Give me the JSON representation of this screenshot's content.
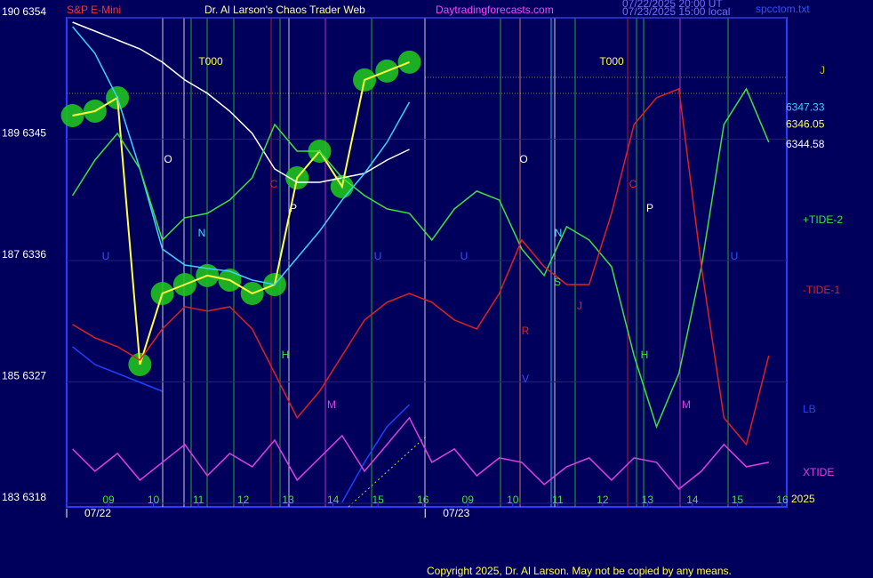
{
  "chart_data": {
    "type": "line",
    "title": "Dr. Al Larson's Chaos Trader Web",
    "instrument": "S&P E-Mini",
    "site": "Daytradingforecasts.com",
    "timestamps": [
      "07/22/2025 20:00 UT",
      "07/23/2025 15:00 local"
    ],
    "file": "spcctom.txt",
    "copyright": "Copyright 2025, Dr. Al Larson. May not be copied by any means.",
    "year": "2025",
    "x": [
      -0.8,
      -0.3,
      0.2,
      0.7,
      1.2,
      1.7,
      2.2,
      2.7,
      3.2,
      3.7,
      4.2,
      4.7,
      5.2,
      5.7,
      6.2,
      6.7,
      7.2,
      7.7,
      8.2,
      8.7,
      9.2,
      9.7,
      10.2,
      10.7,
      11.2,
      11.7,
      12.2,
      12.7,
      13.2,
      13.7,
      14.2,
      14.7
    ],
    "xlim": [
      -0.93,
      15.1
    ],
    "xticks": [
      {
        "value": 0,
        "label": "09"
      },
      {
        "value": 1,
        "label": "10"
      },
      {
        "value": 2,
        "label": "11"
      },
      {
        "value": 3,
        "label": "12"
      },
      {
        "value": 4,
        "label": "13"
      },
      {
        "value": 5,
        "label": "14"
      },
      {
        "value": 6,
        "label": "15"
      },
      {
        "value": 7,
        "label": "16"
      },
      {
        "value": 8,
        "label": "09"
      },
      {
        "value": 9,
        "label": "10"
      },
      {
        "value": 10,
        "label": "11"
      },
      {
        "value": 11,
        "label": "12"
      },
      {
        "value": 12,
        "label": "13"
      },
      {
        "value": 13,
        "label": "14"
      },
      {
        "value": 14,
        "label": "15"
      },
      {
        "value": 15,
        "label": "16"
      }
    ],
    "date_ticks": [
      {
        "value": -0.93,
        "label": "07/22"
      },
      {
        "value": 7.05,
        "label": "07/23"
      }
    ],
    "ylim": [
      6318,
      6354
    ],
    "yticks": [
      {
        "value": 6318,
        "label": "183 6318"
      },
      {
        "value": 6327,
        "label": "185 6327"
      },
      {
        "value": 6336,
        "label": "187 6336"
      },
      {
        "value": 6345,
        "label": "189 6345"
      },
      {
        "value": 6354,
        "label": "190 6354"
      }
    ],
    "grid": true,
    "series": [
      {
        "color": "#ffff40",
        "markers": true,
        "values": [
          6346.75,
          6347.08,
          6348.07,
          6328.29,
          6333.56,
          6334.22,
          6334.89,
          6334.55,
          6333.56,
          6334.22,
          6342.13,
          6344.11,
          6341.48,
          6349.39,
          6350.05,
          6350.71,
          null,
          null,
          null,
          null,
          null,
          null,
          null,
          null,
          null,
          null,
          null,
          null,
          null,
          null,
          null,
          null
        ]
      },
      {
        "color": "#ffffff",
        "values": [
          6353.67,
          6353.01,
          6352.35,
          6351.69,
          6350.71,
          6349.39,
          6348.4,
          6347.08,
          6345.43,
          6342.79,
          6341.8,
          6341.8,
          6342.13,
          6342.46,
          6343.45,
          6344.24,
          null,
          null,
          null,
          null,
          null,
          null,
          null,
          null,
          null,
          null,
          null,
          null,
          null,
          null,
          null,
          null
        ]
      },
      {
        "color": "#40d0ff",
        "values": [
          6353.34,
          6351.36,
          6348.07,
          6342.79,
          6336.86,
          6335.67,
          6335.41,
          6335.21,
          6334.55,
          6334.22,
          6336.2,
          6338.18,
          6340.49,
          6342.46,
          6344.77,
          6347.74,
          null,
          null,
          null,
          null,
          null,
          null,
          null,
          null,
          null,
          null,
          null,
          null,
          null,
          null,
          null,
          null
        ]
      },
      {
        "name": "+TIDE-2",
        "color": "#40e040",
        "values": [
          6340.82,
          6343.45,
          6345.43,
          6342.79,
          6337.52,
          6339.17,
          6339.5,
          6340.49,
          6342.13,
          6346.09,
          6344.11,
          6344.11,
          6342.13,
          6340.82,
          6339.83,
          6339.5,
          6337.52,
          6339.83,
          6341.15,
          6340.49,
          6336.86,
          6334.89,
          6338.51,
          6337.52,
          6335.54,
          6328.95,
          6323.68,
          6327.63,
          6335.54,
          6346.09,
          6348.73,
          6344.77
        ]
      },
      {
        "name": "-TIDE-1",
        "color": "#e02020",
        "values": [
          6331.26,
          6330.27,
          6329.61,
          6328.62,
          6330.93,
          6332.58,
          6332.25,
          6332.58,
          6330.93,
          6327.63,
          6324.34,
          6326.31,
          6328.95,
          6331.59,
          6332.91,
          6333.56,
          6332.91,
          6331.59,
          6330.93,
          6333.56,
          6337.52,
          6335.54,
          6334.22,
          6334.22,
          6339.5,
          6346.09,
          6348.07,
          6348.73,
          6335.54,
          6324.34,
          6322.36,
          6328.95
        ]
      },
      {
        "name": "LB",
        "color": "#2040ff",
        "values": [
          6329.61,
          6328.29,
          6327.63,
          6326.97,
          6326.31,
          null,
          null,
          null,
          null,
          null,
          null,
          null,
          6318.07,
          6321.04,
          6323.68,
          6325.32,
          null,
          null,
          null,
          null,
          null,
          null,
          null,
          null,
          null,
          null,
          null,
          null,
          null,
          null,
          null,
          null
        ]
      },
      {
        "name": "XTIDE",
        "color": "#e040e0",
        "values": [
          6322.03,
          6320.38,
          6321.7,
          6319.72,
          6321.04,
          6322.36,
          6320.05,
          6321.7,
          6320.71,
          6322.69,
          6319.72,
          6321.37,
          6323.02,
          6320.38,
          6322.36,
          6324.34,
          6321.04,
          6322.03,
          6320.05,
          6321.37,
          6321.04,
          6319.39,
          6320.71,
          6321.37,
          6319.72,
          6321.37,
          6321.04,
          6319.06,
          6320.38,
          6322.36,
          6320.71,
          6321.04
        ]
      }
    ],
    "last_prices": [
      {
        "value": 6347.33,
        "color": "#40d0ff"
      },
      {
        "value": 6346.05,
        "color": "#ffff60"
      },
      {
        "value": 6344.58,
        "color": "#ffffff"
      }
    ],
    "annotations": [
      "T000",
      "T000",
      "O",
      "O",
      "N",
      "N",
      "P",
      "P",
      "C",
      "C",
      "U",
      "U",
      "U",
      "U",
      "H",
      "H",
      "M",
      "M",
      "R",
      "V",
      "S",
      "J",
      "J"
    ]
  }
}
